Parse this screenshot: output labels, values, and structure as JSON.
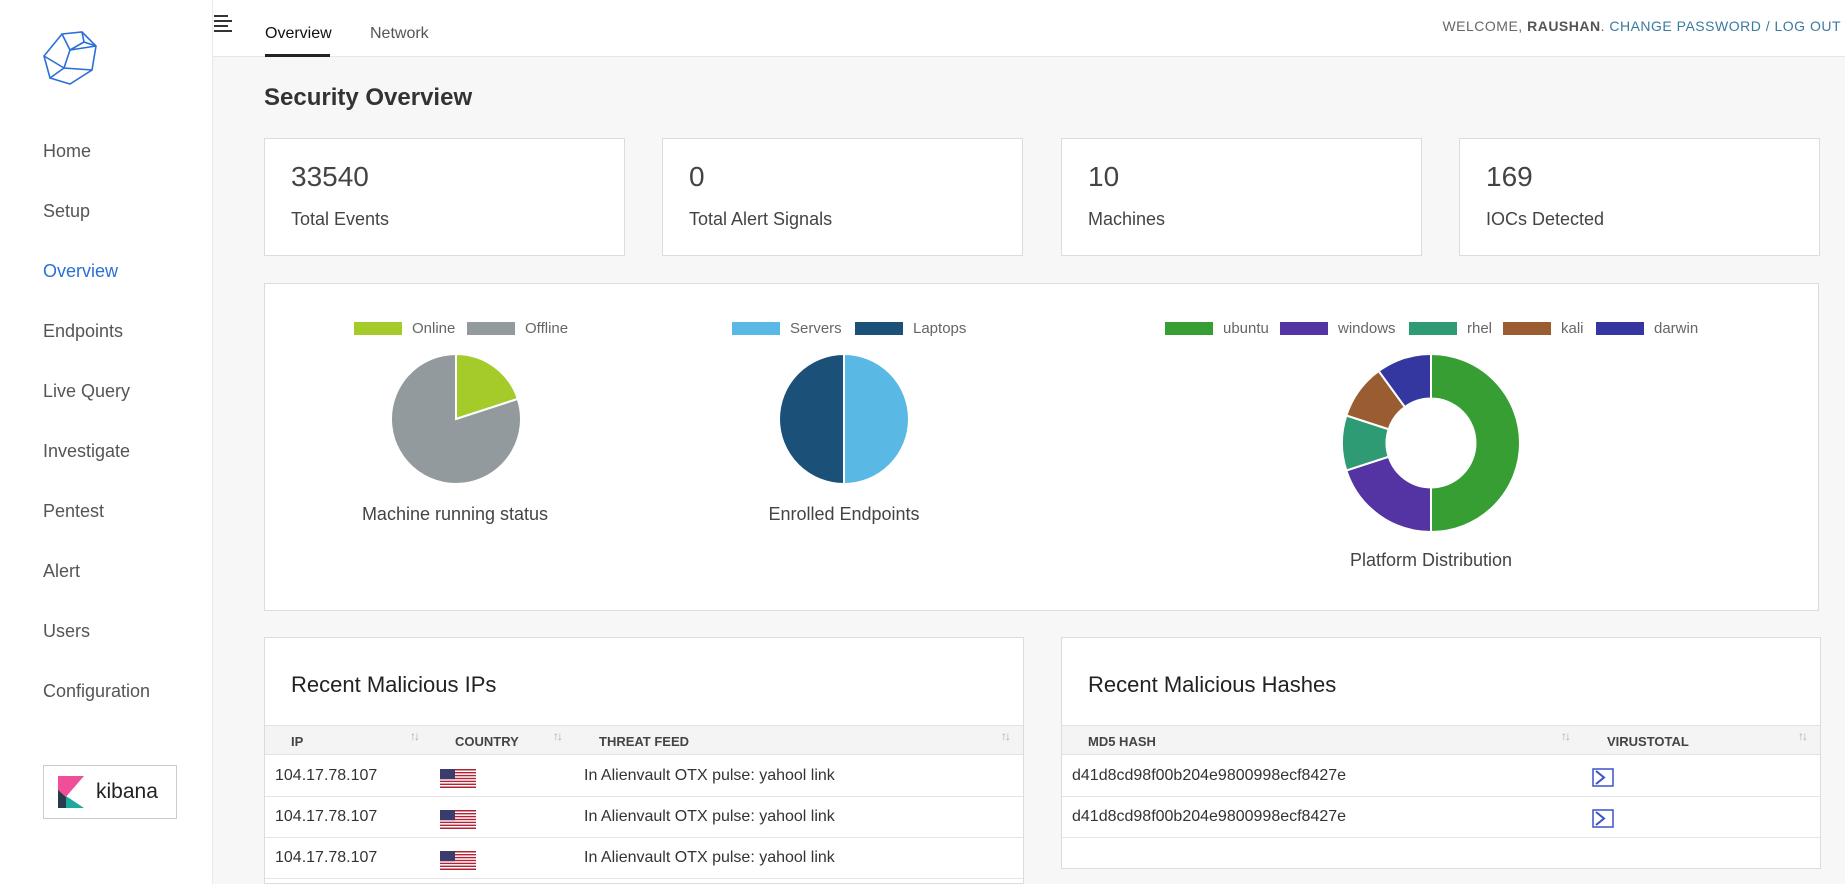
{
  "sidebar": {
    "items": [
      {
        "label": "Home"
      },
      {
        "label": "Setup"
      },
      {
        "label": "Overview"
      },
      {
        "label": "Endpoints"
      },
      {
        "label": "Live Query"
      },
      {
        "label": "Investigate"
      },
      {
        "label": "Pentest"
      },
      {
        "label": "Alert"
      },
      {
        "label": "Users"
      },
      {
        "label": "Configuration"
      }
    ],
    "active": "Overview",
    "kibana_label": "kibana"
  },
  "header": {
    "tabs": [
      {
        "label": "Overview"
      },
      {
        "label": "Network"
      }
    ],
    "active_tab": "Overview",
    "welcome": "WELCOME,",
    "username": "RAUSHAN",
    "change_password": "CHANGE PASSWORD",
    "separator": "/",
    "logout": "LOG OUT"
  },
  "page": {
    "title": "Security Overview"
  },
  "stats": [
    {
      "value": "33540",
      "label": "Total Events"
    },
    {
      "value": "0",
      "label": "Total Alert Signals"
    },
    {
      "value": "10",
      "label": "Machines"
    },
    {
      "value": "169",
      "label": "IOCs Detected"
    }
  ],
  "charts": {
    "machine_status": {
      "title": "Machine running status",
      "legend": [
        {
          "label": "Online",
          "color": "#a4cb2a"
        },
        {
          "label": "Offline",
          "color": "#939a9e"
        }
      ],
      "values": [
        2,
        8
      ]
    },
    "endpoints": {
      "title": "Enrolled Endpoints",
      "legend": [
        {
          "label": "Servers",
          "color": "#5ab9e4"
        },
        {
          "label": "Laptops",
          "color": "#1b5079"
        }
      ],
      "values": [
        5,
        5
      ]
    },
    "platforms": {
      "title": "Platform Distribution",
      "legend": [
        {
          "label": "ubuntu",
          "color": "#369e33"
        },
        {
          "label": "windows",
          "color": "#5433a2"
        },
        {
          "label": "rhel",
          "color": "#2f9b74"
        },
        {
          "label": "kali",
          "color": "#9a5c31"
        },
        {
          "label": "darwin",
          "color": "#33379f"
        }
      ],
      "values": [
        5,
        2,
        1,
        1,
        1
      ]
    }
  },
  "malicious_ips": {
    "title": "Recent Malicious IPs",
    "columns": [
      "IP",
      "COUNTRY",
      "THREAT FEED"
    ],
    "sort_icon": "↑↓",
    "rows": [
      {
        "ip": "104.17.78.107",
        "country": "us-flag-icon",
        "feed": "In Alienvault OTX pulse: yahool link"
      },
      {
        "ip": "104.17.78.107",
        "country": "us-flag-icon",
        "feed": "In Alienvault OTX pulse: yahool link"
      },
      {
        "ip": "104.17.78.107",
        "country": "us-flag-icon",
        "feed": "In Alienvault OTX pulse: yahool link"
      }
    ]
  },
  "malicious_hashes": {
    "title": "Recent Malicious Hashes",
    "columns": [
      "MD5 HASH",
      "VIRUSTOTAL"
    ],
    "sort_icon": "↑↓",
    "rows": [
      {
        "hash": "d41d8cd98f00b204e9800998ecf8427e",
        "icon": "virustotal-icon"
      },
      {
        "hash": "d41d8cd98f00b204e9800998ecf8427e",
        "icon": "virustotal-icon"
      }
    ]
  }
}
